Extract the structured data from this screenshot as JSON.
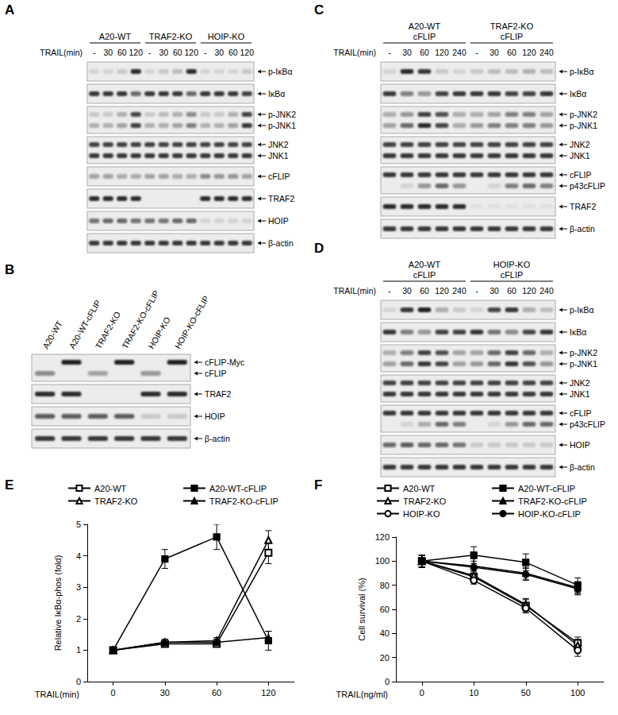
{
  "panels": [
    {
      "letter": "A",
      "treatment_label": "TRAIL(min)",
      "groups": [
        {
          "name": [
            "A20-WT"
          ],
          "lanes": [
            "-",
            "30",
            "60",
            "120"
          ]
        },
        {
          "name": [
            "TRAF2-KO"
          ],
          "lanes": [
            "-",
            "30",
            "60",
            "120"
          ]
        },
        {
          "name": [
            "HOIP-KO"
          ],
          "lanes": [
            "-",
            "30",
            "60",
            "120"
          ]
        }
      ],
      "rows": [
        {
          "bands": [
            {
              "label": "p-IκBα",
              "intensity": [
                0.1,
                0.1,
                0.15,
                0.9,
                0.1,
                0.15,
                0.2,
                0.9,
                0.1,
                0.1,
                0.1,
                0.15
              ]
            }
          ]
        },
        {
          "bands": [
            {
              "label": "IκBα",
              "intensity": [
                0.85,
                0.85,
                0.85,
                0.6,
                0.85,
                0.85,
                0.85,
                0.6,
                0.85,
                0.85,
                0.85,
                0.8
              ]
            }
          ]
        },
        {
          "bands": [
            {
              "label": "p-JNK2",
              "intensity": [
                0.15,
                0.15,
                0.25,
                0.75,
                0.15,
                0.2,
                0.25,
                0.45,
                0.15,
                0.15,
                0.25,
                0.8
              ]
            },
            {
              "label": "p-JNK1",
              "intensity": [
                0.25,
                0.25,
                0.35,
                0.8,
                0.25,
                0.3,
                0.35,
                0.5,
                0.25,
                0.25,
                0.35,
                0.85
              ]
            }
          ]
        },
        {
          "bands": [
            {
              "label": "JNK2",
              "intensity": [
                0.8,
                0.8,
                0.8,
                0.8,
                0.8,
                0.8,
                0.8,
                0.8,
                0.8,
                0.8,
                0.8,
                0.8
              ]
            },
            {
              "label": "JNK1",
              "intensity": [
                0.85,
                0.85,
                0.85,
                0.85,
                0.85,
                0.85,
                0.85,
                0.85,
                0.85,
                0.85,
                0.85,
                0.85
              ]
            }
          ]
        },
        {
          "bands": [
            {
              "label": "cFLIP",
              "intensity": [
                0.35,
                0.35,
                0.3,
                0.3,
                0.35,
                0.35,
                0.3,
                0.3,
                0.45,
                0.4,
                0.4,
                0.35
              ]
            }
          ]
        },
        {
          "bands": [
            {
              "label": "TRAF2",
              "intensity": [
                0.9,
                0.9,
                0.9,
                0.9,
                0,
                0,
                0,
                0,
                0.9,
                0.9,
                0.9,
                0.9
              ]
            }
          ]
        },
        {
          "bands": [
            {
              "label": "HOIP",
              "intensity": [
                0.55,
                0.6,
                0.6,
                0.55,
                0.55,
                0.55,
                0.6,
                0.6,
                0.1,
                0.1,
                0.1,
                0.1
              ]
            }
          ]
        },
        {
          "bands": [
            {
              "label": "β-actin",
              "intensity": [
                0.85,
                0.85,
                0.85,
                0.85,
                0.85,
                0.85,
                0.85,
                0.85,
                0.85,
                0.85,
                0.85,
                0.85
              ]
            }
          ]
        }
      ]
    },
    {
      "letter": "B",
      "lane_labels": [
        "A20-WT",
        "A20-WT-cFLIP",
        "TRAF2-KO",
        "TRAF2-KO-cFLIP",
        "HOIP-KO",
        "HOIP-KO-cFLIP"
      ],
      "rows": [
        {
          "bands": [
            {
              "label": "cFLIP-Myc",
              "intensity": [
                0,
                0.95,
                0,
                0.95,
                0,
                0.95
              ]
            },
            {
              "label": "cFLIP",
              "intensity": [
                0.45,
                0,
                0.35,
                0,
                0.4,
                0
              ]
            }
          ]
        },
        {
          "bands": [
            {
              "label": "TRAF2",
              "intensity": [
                0.9,
                0.9,
                0,
                0,
                0.9,
                0.9
              ]
            }
          ]
        },
        {
          "bands": [
            {
              "label": "HOIP",
              "intensity": [
                0.65,
                0.65,
                0.65,
                0.65,
                0.15,
                0.15
              ]
            }
          ]
        },
        {
          "bands": [
            {
              "label": "β-actin",
              "intensity": [
                0.85,
                0.85,
                0.85,
                0.85,
                0.85,
                0.85
              ]
            }
          ]
        }
      ]
    },
    {
      "letter": "C",
      "treatment_label": "TRAIL(min)",
      "groups": [
        {
          "name": [
            "A20-WT",
            "cFLIP"
          ],
          "lanes": [
            "-",
            "30",
            "60",
            "120",
            "240"
          ]
        },
        {
          "name": [
            "TRAF2-KO",
            "cFLIP"
          ],
          "lanes": [
            "-",
            "30",
            "60",
            "120",
            "240"
          ]
        }
      ],
      "rows": [
        {
          "bands": [
            {
              "label": "p-IκBα",
              "intensity": [
                0.1,
                0.9,
                0.85,
                0.15,
                0.1,
                0.15,
                0.2,
                0.2,
                0.25,
                0.2
              ]
            }
          ]
        },
        {
          "bands": [
            {
              "label": "IκBα",
              "intensity": [
                0.85,
                0.5,
                0.4,
                0.8,
                0.85,
                0.85,
                0.85,
                0.8,
                0.8,
                0.85
              ]
            }
          ]
        },
        {
          "bands": [
            {
              "label": "p-JNK2",
              "intensity": [
                0.3,
                0.4,
                0.8,
                0.7,
                0.3,
                0.3,
                0.35,
                0.5,
                0.5,
                0.35
              ]
            },
            {
              "label": "p-JNK1",
              "intensity": [
                0.35,
                0.6,
                0.9,
                0.75,
                0.3,
                0.4,
                0.5,
                0.5,
                0.5,
                0.4
              ]
            }
          ]
        },
        {
          "bands": [
            {
              "label": "JNK2",
              "intensity": [
                0.8,
                0.8,
                0.8,
                0.8,
                0.8,
                0.8,
                0.8,
                0.8,
                0.8,
                0.8
              ]
            },
            {
              "label": "JNK1",
              "intensity": [
                0.85,
                0.85,
                0.85,
                0.85,
                0.85,
                0.85,
                0.85,
                0.85,
                0.85,
                0.85
              ]
            }
          ]
        },
        {
          "bands": [
            {
              "label": "cFLIP",
              "intensity": [
                0.85,
                0.85,
                0.85,
                0.85,
                0.85,
                0.85,
                0.85,
                0.85,
                0.85,
                0.85
              ]
            },
            {
              "label": "p43cFLIP",
              "intensity": [
                0,
                0.1,
                0.4,
                0.6,
                0.4,
                0,
                0.1,
                0.5,
                0.6,
                0.5
              ]
            }
          ]
        },
        {
          "bands": [
            {
              "label": "TRAF2",
              "intensity": [
                0.9,
                0.9,
                0.9,
                0.9,
                0.9,
                0.05,
                0.05,
                0.05,
                0.05,
                0.05
              ]
            }
          ]
        },
        {
          "bands": [
            {
              "label": "β-actin",
              "intensity": [
                0.85,
                0.85,
                0.85,
                0.85,
                0.85,
                0.85,
                0.85,
                0.85,
                0.85,
                0.85
              ]
            }
          ]
        }
      ]
    },
    {
      "letter": "D",
      "treatment_label": "TRAIL(min)",
      "groups": [
        {
          "name": [
            "A20-WT",
            "cFLIP"
          ],
          "lanes": [
            "-",
            "30",
            "60",
            "120",
            "240"
          ]
        },
        {
          "name": [
            "HOIP-KO",
            "cFLIP"
          ],
          "lanes": [
            "-",
            "30",
            "60",
            "120",
            "240"
          ]
        }
      ],
      "rows": [
        {
          "bands": [
            {
              "label": "p-IκBα",
              "intensity": [
                0.1,
                0.85,
                0.95,
                0.3,
                0.15,
                0.1,
                0.75,
                0.85,
                0.3,
                0.2
              ]
            }
          ]
        },
        {
          "bands": [
            {
              "label": "IκBα",
              "intensity": [
                0.85,
                0.5,
                0.4,
                0.8,
                0.8,
                0.85,
                0.55,
                0.45,
                0.75,
                0.85
              ]
            }
          ]
        },
        {
          "bands": [
            {
              "label": "p-JNK2",
              "intensity": [
                0.3,
                0.5,
                0.8,
                0.7,
                0.35,
                0.35,
                0.6,
                0.8,
                0.6,
                0.3
              ]
            },
            {
              "label": "p-JNK1",
              "intensity": [
                0.35,
                0.6,
                0.85,
                0.75,
                0.35,
                0.4,
                0.6,
                0.85,
                0.7,
                0.4
              ]
            }
          ]
        },
        {
          "bands": [
            {
              "label": "JNK2",
              "intensity": [
                0.8,
                0.8,
                0.8,
                0.8,
                0.8,
                0.8,
                0.8,
                0.8,
                0.8,
                0.8
              ]
            },
            {
              "label": "JNK1",
              "intensity": [
                0.85,
                0.85,
                0.85,
                0.85,
                0.85,
                0.85,
                0.85,
                0.85,
                0.85,
                0.85
              ]
            }
          ]
        },
        {
          "bands": [
            {
              "label": "cFLIP",
              "intensity": [
                0.85,
                0.85,
                0.85,
                0.85,
                0.85,
                0.85,
                0.85,
                0.85,
                0.85,
                0.85
              ]
            },
            {
              "label": "p43cFLIP",
              "intensity": [
                0,
                0.1,
                0.3,
                0.6,
                0.5,
                0,
                0.1,
                0.4,
                0.6,
                0.6
              ]
            }
          ]
        },
        {
          "bands": [
            {
              "label": "HOIP",
              "intensity": [
                0.6,
                0.65,
                0.6,
                0.6,
                0.55,
                0.15,
                0.15,
                0.15,
                0.15,
                0.15
              ]
            }
          ]
        },
        {
          "bands": [
            {
              "label": "β-actin",
              "intensity": [
                0.85,
                0.85,
                0.85,
                0.85,
                0.85,
                0.85,
                0.85,
                0.85,
                0.85,
                0.85
              ]
            }
          ]
        }
      ]
    }
  ],
  "chart_data": [
    {
      "type": "line",
      "panel_label": "E",
      "x_label": "TRAIL(min)",
      "y_label": "Relative IκBα-phos (fold)",
      "categories": [
        "0",
        "30",
        "60",
        "120"
      ],
      "ylim": [
        0,
        5
      ],
      "yticks": [
        0,
        1,
        2,
        3,
        4,
        5
      ],
      "grid": false,
      "legend": "top",
      "series": [
        {
          "name": "A20-WT",
          "color": "#000000",
          "marker": "open-square",
          "values": [
            1,
            1.2,
            1.2,
            4.1
          ],
          "errors": [
            0.05,
            0.1,
            0.1,
            0.35
          ]
        },
        {
          "name": "A20-WT-cFLIP",
          "color": "#000000",
          "marker": "filled-square",
          "values": [
            1,
            3.9,
            4.6,
            1.3
          ],
          "errors": [
            0.05,
            0.3,
            0.4,
            0.3
          ]
        },
        {
          "name": "TRAF2-KO",
          "color": "#000000",
          "marker": "open-triangle",
          "values": [
            1,
            1.25,
            1.3,
            4.5
          ],
          "errors": [
            0.05,
            0.1,
            0.1,
            0.3
          ]
        },
        {
          "name": "TRAF2-KO-cFLIP",
          "color": "#000000",
          "marker": "filled-triangle",
          "values": [
            1,
            1.25,
            1.25,
            1.4
          ],
          "errors": [
            0.05,
            0.1,
            0.1,
            0.2
          ]
        }
      ]
    },
    {
      "type": "line",
      "panel_label": "F",
      "x_label": "TRAIL(ng/ml)",
      "y_label": "Cell survival (%)",
      "categories": [
        "0",
        "10",
        "50",
        "100"
      ],
      "ylim": [
        0,
        120
      ],
      "yticks": [
        0,
        20,
        40,
        60,
        80,
        100,
        120
      ],
      "grid": false,
      "legend": "top",
      "series": [
        {
          "name": "A20-WT",
          "color": "#000000",
          "marker": "open-square",
          "values": [
            100,
            87,
            63,
            32
          ],
          "errors": [
            5,
            4,
            5,
            5
          ]
        },
        {
          "name": "A20-WT-cFLIP",
          "color": "#000000",
          "marker": "filled-square",
          "values": [
            100,
            105,
            99,
            80
          ],
          "errors": [
            5,
            7,
            7,
            6
          ]
        },
        {
          "name": "TRAF2-KO",
          "color": "#000000",
          "marker": "open-triangle",
          "values": [
            100,
            88,
            64,
            30
          ],
          "errors": [
            5,
            4,
            5,
            5
          ]
        },
        {
          "name": "TRAF2-KO-cFLIP",
          "color": "#000000",
          "marker": "filled-triangle",
          "values": [
            100,
            96,
            90,
            78
          ],
          "errors": [
            5,
            6,
            5,
            5
          ]
        },
        {
          "name": "HOIP-KO",
          "color": "#000000",
          "marker": "open-circle",
          "values": [
            100,
            84,
            61,
            26
          ],
          "errors": [
            5,
            3,
            4,
            5
          ]
        },
        {
          "name": "HOIP-KO-cFLIP",
          "color": "#000000",
          "marker": "filled-circle",
          "values": [
            100,
            95,
            89,
            77
          ],
          "errors": [
            5,
            5,
            5,
            5
          ]
        }
      ]
    }
  ]
}
